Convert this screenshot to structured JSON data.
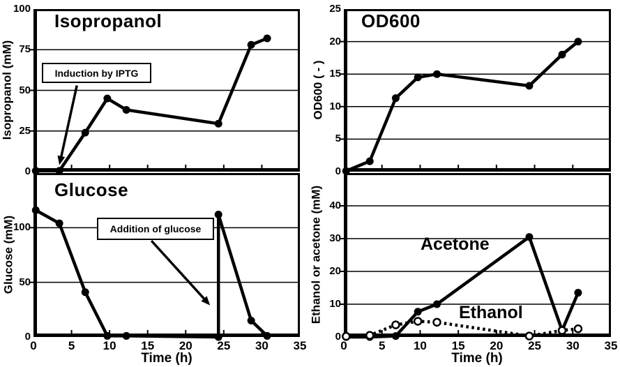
{
  "figure": {
    "background_color": "#ffffff",
    "ink_color": "#000000"
  },
  "chart_data": [
    {
      "id": "isopropanol",
      "type": "line",
      "title": "Isopropanol",
      "ylabel": "Isopropanol (mM)",
      "xlim": [
        0,
        35
      ],
      "ylim": [
        0,
        100
      ],
      "yticks": [
        0,
        25,
        50,
        75,
        100
      ],
      "xticks": [
        0,
        5,
        10,
        15,
        20,
        25,
        30,
        35
      ],
      "show_xtick_labels": false,
      "grid": "horizontal",
      "legend": "none",
      "annotations": [
        {
          "text": "Induction by IPTG",
          "arrow_from": [
            5.7,
            53
          ],
          "arrow_to": [
            3.4,
            4
          ]
        }
      ],
      "series": [
        {
          "name": "Isopropanol",
          "marker": "filled",
          "line": "solid",
          "x": [
            0.3,
            3.4,
            6.8,
            9.7,
            12.2,
            24.3,
            28.6,
            30.7
          ],
          "y": [
            0.5,
            0.5,
            24,
            45,
            38,
            29.5,
            78,
            82
          ]
        }
      ]
    },
    {
      "id": "od600",
      "type": "line",
      "title": "OD600",
      "ylabel": "OD600 ( - )",
      "xlim": [
        0,
        35
      ],
      "ylim": [
        0,
        25
      ],
      "yticks": [
        0,
        5,
        10,
        15,
        20,
        25
      ],
      "xticks": [
        0,
        5,
        10,
        15,
        20,
        25,
        30,
        35
      ],
      "show_xtick_labels": false,
      "grid": "horizontal",
      "legend": "none",
      "annotations": [],
      "series": [
        {
          "name": "OD600",
          "marker": "filled",
          "line": "solid",
          "x": [
            0.3,
            3.4,
            6.8,
            9.7,
            12.2,
            24.3,
            28.6,
            30.7
          ],
          "y": [
            0.1,
            1.6,
            11.3,
            14.5,
            15,
            13.2,
            18,
            20
          ]
        }
      ]
    },
    {
      "id": "glucose",
      "type": "line",
      "title": "Glucose",
      "ylabel": "Glucose (mM)",
      "xlabel": "Time (h)",
      "xlim": [
        0,
        35
      ],
      "ylim": [
        0,
        150
      ],
      "yticks": [
        0,
        50,
        100
      ],
      "xticks": [
        0,
        5,
        10,
        15,
        20,
        25,
        30,
        35
      ],
      "show_xtick_labels": true,
      "grid": "horizontal",
      "legend": "none",
      "annotations": [
        {
          "text": "Addition of glucose",
          "arrow_from": [
            15.5,
            88
          ],
          "arrow_to": [
            23.2,
            29
          ]
        }
      ],
      "series": [
        {
          "name": "Glucose",
          "marker": "filled",
          "line": "solid",
          "x": [
            0.3,
            3.4,
            6.8,
            9.7,
            12.2,
            24.3,
            24.3,
            28.6,
            30.7
          ],
          "y": [
            116,
            104,
            41,
            1,
            1,
            0,
            112,
            15,
            1
          ]
        }
      ]
    },
    {
      "id": "ethanol_acetone",
      "type": "line",
      "ylabel": "Ethanol or acetone (mM)",
      "xlabel": "Time (h)",
      "xlim": [
        0,
        35
      ],
      "ylim": [
        0,
        50
      ],
      "yticks": [
        0,
        10,
        20,
        30,
        40
      ],
      "xticks": [
        0,
        5,
        10,
        15,
        20,
        25,
        30,
        35
      ],
      "show_xtick_labels": true,
      "grid": "horizontal",
      "legend": "inline-text-labels",
      "annotations": [],
      "series": [
        {
          "name": "Ethanol",
          "marker": "open",
          "line": "dotted",
          "x": [
            0.3,
            3.4,
            6.8,
            9.7,
            12.2,
            24.3,
            28.6,
            30.7
          ],
          "y": [
            0.2,
            0.5,
            3.7,
            4.8,
            4.5,
            0.3,
            2,
            2.5
          ]
        },
        {
          "name": "Acetone",
          "marker": "filled",
          "line": "solid",
          "x": [
            0.3,
            3.4,
            6.8,
            9.7,
            12.2,
            24.3,
            28.6,
            30.7
          ],
          "y": [
            0,
            0,
            0.3,
            7.7,
            10,
            30.5,
            2,
            13.5
          ]
        }
      ]
    }
  ]
}
